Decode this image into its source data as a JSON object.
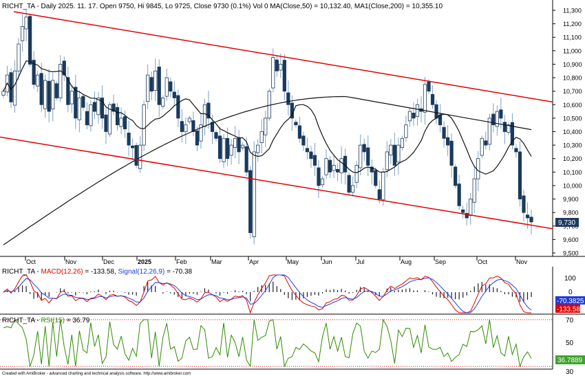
{
  "chart_data": [
    {
      "type": "candlestick",
      "header": "RICHT_TA - Daily 2025. 11. 17. Open 9750, Hi 9845, Lo 9725, Close 9730 (0.1%) Vol 0 MA(Close,50) = 10,132.40, MA1(Close,200) = 10,355.10",
      "y_ticks": [
        "11,300",
        "11,200",
        "11,100",
        "11,000",
        "10,900",
        "10,800",
        "10,700",
        "10,600",
        "10,500",
        "10,400",
        "10,300",
        "10,200",
        "10,100",
        "10,000",
        "9,900",
        "9,800",
        "9,700",
        "9,600",
        "9,500"
      ],
      "x_ticks": [
        "Oct",
        "Nov",
        "Dec",
        "2025",
        "Feb",
        "Mar",
        "Apr",
        "May",
        "Jun",
        "Jul",
        "Aug",
        "Sep",
        "Oct",
        "Nov"
      ],
      "ylim": [
        9450,
        11330
      ],
      "last_close_label": "9,730",
      "ohlc_seed": [
        10700,
        10820,
        10620,
        10850,
        11050,
        11180,
        11250,
        10900,
        10750,
        10820,
        10600,
        10780,
        10550,
        10780,
        10650,
        10900,
        10820,
        10600,
        10700,
        10500,
        10650,
        10580,
        10450,
        10600,
        10550,
        10650,
        10500,
        10400,
        10600,
        10550,
        10450,
        10500,
        10420,
        10300,
        10280,
        10150,
        10300,
        10600,
        10820,
        10700,
        10850,
        10600,
        10650,
        10800,
        10700,
        10650,
        10500,
        10400,
        10450,
        10500,
        10400,
        10300,
        10450,
        10600,
        10500,
        10400,
        10350,
        10200,
        10350,
        10200,
        10300,
        10350,
        10250,
        10300,
        10100,
        9650,
        10250,
        10300,
        10400,
        10500,
        10700,
        10950,
        10850,
        10900,
        10700,
        10600,
        10500,
        10450,
        10350,
        10300,
        10250,
        10200,
        10150,
        10000,
        10050,
        10200,
        10100,
        10150,
        10100,
        10200,
        10100,
        9950,
        10000,
        10150,
        10300,
        10250,
        10150,
        10100,
        10000,
        9900,
        10100,
        10250,
        10300,
        10150,
        10300,
        10350,
        10450,
        10550,
        10500,
        10600,
        10550,
        10750,
        10700,
        10600,
        10500,
        10450,
        10350,
        10300,
        10150,
        10000,
        9850,
        9800,
        9760,
        9900,
        10050,
        10200,
        10350,
        10300,
        10500,
        10450,
        10550,
        10500,
        10400,
        10450,
        10300,
        10250,
        9900,
        9800,
        9760,
        9730
      ],
      "channel_upper": {
        "start": 11290,
        "end": 10620
      },
      "channel_lower": {
        "start": 10360,
        "end": 9680
      },
      "ma50_label": "MA(Close,50)",
      "ma200_label": "MA1(Close,200)",
      "colors": {
        "candle": "#1a3a5c",
        "wick": "#7f9fbf",
        "ma": "#111111",
        "channel": "#e00000",
        "last_label_bg": "#1f3a60"
      }
    },
    {
      "type": "line",
      "header_ticker": "RICHT_TA - ",
      "macd_label": "MACD(12,26)",
      "macd_value": " = -133.58, ",
      "signal_label": "Signal(12,26,9)",
      "signal_value": " = -70.38",
      "y_ticks": [
        "100",
        "0",
        "-100"
      ],
      "signal_last_label": "-70.3825",
      "macd_last_label": "-133.58",
      "colors": {
        "macd": "#e00000",
        "signal": "#1f3cd8",
        "hist": "#1a1a2e"
      }
    },
    {
      "type": "line",
      "header_ticker": "RICHT_TA - ",
      "rsi_label": "RSI(15)",
      "rsi_value": " = 36.79",
      "y_ticks": [
        "70",
        "50",
        "30"
      ],
      "last_label": "36.7889",
      "colors": {
        "rsi": "#2e8b00",
        "levels": "#e00000",
        "last_label_bg": "#3ea32e"
      }
    }
  ],
  "footer": "Created with AmiBroker - advanced charting and technical analysis software. http://www.amibroker.com"
}
